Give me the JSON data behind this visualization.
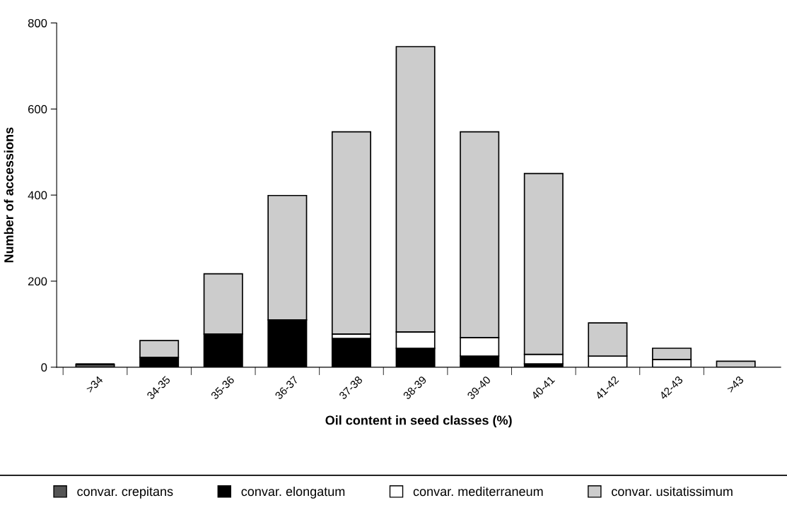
{
  "chart_data": {
    "type": "bar",
    "stacked": true,
    "xlabel": "Oil content in seed classes (%)",
    "ylabel": "Number of accessions",
    "categories": [
      ">34",
      "34-35",
      "35-36",
      "36-37",
      "37-38",
      "38-39",
      "39-40",
      "40-41",
      "41-42",
      "42-43",
      ">43"
    ],
    "series": [
      {
        "name": "convar. crepitans",
        "color": "#555555",
        "values": [
          7,
          0,
          0,
          null,
          0,
          0,
          0,
          0,
          0,
          0,
          0
        ]
      },
      {
        "name": "convar. elongatum",
        "color": "#000000",
        "values": [
          0,
          23,
          77,
          110,
          67,
          44,
          26,
          8,
          null,
          0,
          0
        ]
      },
      {
        "name": "convar. mediterraneum",
        "color": "#ffffff",
        "values": [
          0,
          0,
          0,
          0,
          10,
          38,
          43,
          22,
          26,
          18,
          null
        ]
      },
      {
        "name": "convar. usitatissimum",
        "color": "#cccccc",
        "values": [
          0,
          39,
          140,
          289,
          470,
          663,
          478,
          420,
          77,
          26,
          14
        ]
      }
    ],
    "ylim": [
      0,
      800
    ],
    "yticks": [
      0,
      200,
      400,
      600,
      800
    ],
    "grid": false,
    "legend": "bottom"
  }
}
